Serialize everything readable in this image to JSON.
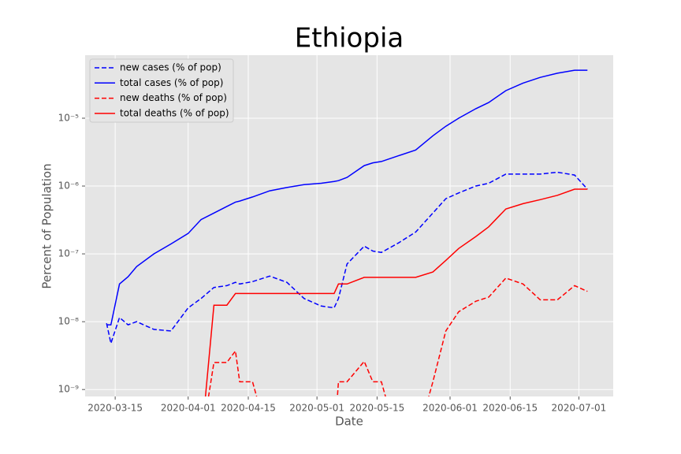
{
  "chart_data": {
    "type": "line",
    "title": "Ethiopia",
    "x_label": "Date",
    "y_label": "Percent of Population",
    "log_scale": true,
    "grid": true,
    "legend": "upper left",
    "xlim": [
      "2020-03-08",
      "2020-07-09"
    ],
    "xticks": [
      "2020-03-15",
      "2020-04-01",
      "2020-04-15",
      "2020-05-01",
      "2020-05-15",
      "2020-06-01",
      "2020-06-15",
      "2020-07-01"
    ],
    "ylim": [
      7.9e-10,
      8.5e-05
    ],
    "yticks": [
      {
        "value": 1e-09,
        "label": "10⁻⁹"
      },
      {
        "value": 1e-08,
        "label": "10⁻⁸"
      },
      {
        "value": 1e-07,
        "label": "10⁻⁷"
      },
      {
        "value": 1e-06,
        "label": "10⁻⁶"
      },
      {
        "value": 1e-05,
        "label": "10⁻⁵"
      }
    ],
    "x": [
      "2020-03-13",
      "2020-03-14",
      "2020-03-16",
      "2020-03-18",
      "2020-03-20",
      "2020-03-24",
      "2020-03-28",
      "2020-04-01",
      "2020-04-04",
      "2020-04-07",
      "2020-04-10",
      "2020-04-12",
      "2020-04-13",
      "2020-04-16",
      "2020-04-20",
      "2020-04-24",
      "2020-04-28",
      "2020-05-02",
      "2020-05-05",
      "2020-05-06",
      "2020-05-08",
      "2020-05-12",
      "2020-05-14",
      "2020-05-16",
      "2020-05-20",
      "2020-05-24",
      "2020-05-28",
      "2020-05-31",
      "2020-06-03",
      "2020-06-07",
      "2020-06-10",
      "2020-06-14",
      "2020-06-18",
      "2020-06-22",
      "2020-06-26",
      "2020-06-30",
      "2020-07-03"
    ],
    "series": [
      {
        "name": "new cases (% of pop)",
        "color": "#0000ff",
        "dashed": true,
        "values": [
          9.5e-09,
          4.8e-09,
          1.15e-08,
          9e-09,
          1e-08,
          7.7e-09,
          7.3e-09,
          1.6e-08,
          2.2e-08,
          3.2e-08,
          3.4e-08,
          3.8e-08,
          3.6e-08,
          3.9e-08,
          4.7e-08,
          3.8e-08,
          2.2e-08,
          1.7e-08,
          1.6e-08,
          2.2e-08,
          7.1e-08,
          1.3e-07,
          1.1e-07,
          1.05e-07,
          1.45e-07,
          2.1e-07,
          4e-07,
          6.5e-07,
          7.9e-07,
          1e-06,
          1.1e-06,
          1.5e-06,
          1.5e-06,
          1.5e-06,
          1.6e-06,
          1.45e-06,
          9e-07
        ]
      },
      {
        "name": "total cases (% of pop)",
        "color": "#0000ff",
        "dashed": false,
        "values": [
          9e-09,
          9e-09,
          3.6e-08,
          4.6e-08,
          6.5e-08,
          1e-07,
          1.4e-07,
          2e-07,
          3.2e-07,
          4e-07,
          5e-07,
          5.8e-07,
          6e-07,
          6.9e-07,
          8.5e-07,
          9.5e-07,
          1.05e-06,
          1.1e-06,
          1.17e-06,
          1.2e-06,
          1.34e-06,
          2e-06,
          2.2e-06,
          2.3e-06,
          2.8e-06,
          3.4e-06,
          5.5e-06,
          7.6e-06,
          1e-05,
          1.38e-05,
          1.7e-05,
          2.55e-05,
          3.3e-05,
          4e-05,
          4.6e-05,
          5.1e-05,
          5.1e-05
        ]
      },
      {
        "name": "new deaths (% of pop)",
        "color": "#ff0000",
        "dashed": true,
        "values": [
          0,
          0,
          0,
          0,
          0,
          0,
          0,
          0,
          0,
          2.5e-09,
          2.5e-09,
          3.7e-09,
          1.3e-09,
          1.3e-09,
          0,
          0,
          0,
          0,
          0,
          1.3e-09,
          1.3e-09,
          2.6e-09,
          1.3e-09,
          1.3e-09,
          0,
          0,
          1.3e-09,
          7.3e-09,
          1.4e-08,
          2e-08,
          2.3e-08,
          4.4e-08,
          3.6e-08,
          2.1e-08,
          2.1e-08,
          3.4e-08,
          2.8e-08
        ]
      },
      {
        "name": "total deaths (% of pop)",
        "color": "#ff0000",
        "dashed": false,
        "values": [
          0,
          0,
          0,
          0,
          0,
          0,
          0,
          0,
          0,
          1.75e-08,
          1.75e-08,
          2.6e-08,
          2.6e-08,
          2.6e-08,
          2.6e-08,
          2.6e-08,
          2.6e-08,
          2.6e-08,
          2.6e-08,
          3.6e-08,
          3.6e-08,
          4.5e-08,
          4.5e-08,
          4.5e-08,
          4.5e-08,
          4.5e-08,
          5.4e-08,
          8e-08,
          1.2e-07,
          1.8e-07,
          2.5e-07,
          4.6e-07,
          5.5e-07,
          6.3e-07,
          7.3e-07,
          9e-07,
          9e-07
        ]
      }
    ]
  }
}
